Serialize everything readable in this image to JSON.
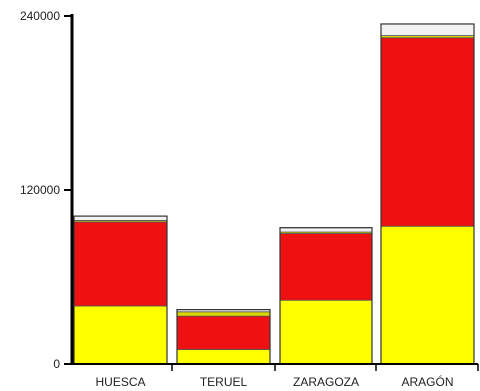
{
  "chart_data": {
    "type": "bar",
    "stacked": true,
    "categories": [
      "HUESCA",
      "TERUEL",
      "ZARAGOZA",
      "ARAGÓN"
    ],
    "series": [
      {
        "values": [
          40000,
          10000,
          44000,
          95000
        ],
        "color": "#ffff00"
      },
      {
        "values": [
          58000,
          23000,
          46000,
          130000
        ],
        "color": "#ee1111"
      },
      {
        "values": [
          1000,
          3000,
          1000,
          1500
        ],
        "color": "#d8d800"
      },
      {
        "values": [
          3000,
          1500,
          3000,
          8000
        ],
        "color": "#f2f2f2"
      }
    ],
    "yticks": [
      0,
      120000,
      240000
    ],
    "ylim": [
      0,
      240000
    ],
    "title": "",
    "xlabel": "",
    "ylabel": "",
    "legend": "none",
    "grid": false
  }
}
